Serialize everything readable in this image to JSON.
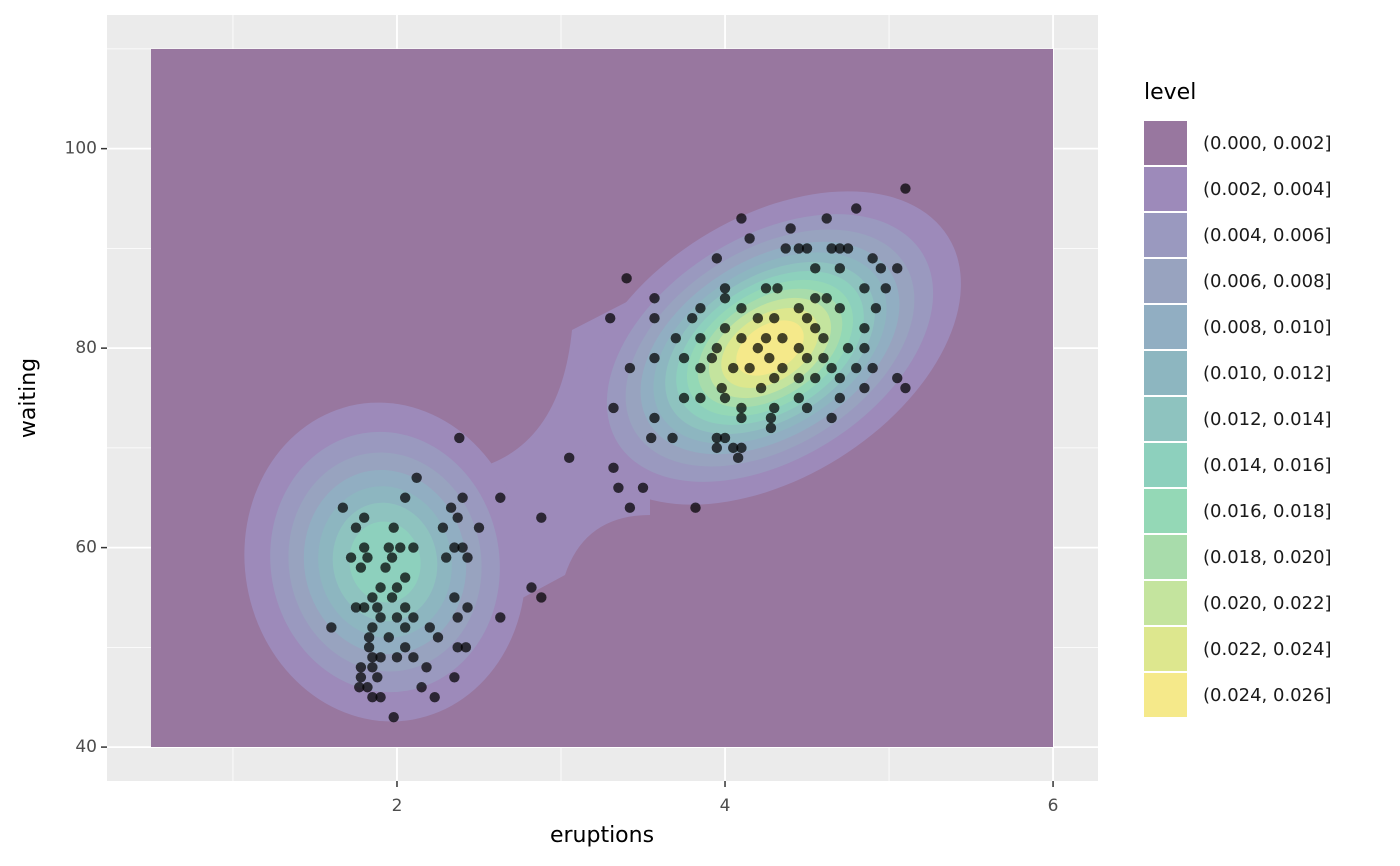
{
  "chart_data": {
    "type": "scatter",
    "x_label": "eruptions",
    "y_label": "waiting",
    "xlim": [
      0.232,
      6.274
    ],
    "ylim": [
      36.6,
      113.4
    ],
    "xticks": [
      2,
      4,
      6
    ],
    "yticks": [
      40,
      60,
      80,
      100
    ],
    "grid": true,
    "color": "#000000",
    "legend_title": "level",
    "legend_position": "right",
    "levels": [
      {
        "name": "(0.000, 0.002]",
        "color": "#98779f"
      },
      {
        "name": "(0.002, 0.004]",
        "color": "#9d8aba"
      },
      {
        "name": "(0.004, 0.006]",
        "color": "#9a99bf"
      },
      {
        "name": "(0.006, 0.008]",
        "color": "#98a3bf"
      },
      {
        "name": "(0.008, 0.010]",
        "color": "#91aec2"
      },
      {
        "name": "(0.010, 0.012]",
        "color": "#8db6c0"
      },
      {
        "name": "(0.012, 0.014]",
        "color": "#8ec3bf"
      },
      {
        "name": "(0.014, 0.016]",
        "color": "#8dd0bd"
      },
      {
        "name": "(0.016, 0.018]",
        "color": "#94d8b6"
      },
      {
        "name": "(0.018, 0.020]",
        "color": "#a8dcab"
      },
      {
        "name": "(0.020, 0.022]",
        "color": "#c4e49e"
      },
      {
        "name": "(0.022, 0.024]",
        "color": "#dde78e"
      },
      {
        "name": "(0.024, 0.026]",
        "color": "#f5e98a"
      }
    ],
    "x": [
      5.1,
      4.8,
      4.1,
      4.62,
      4.4,
      4.15,
      3.95,
      4.37,
      4.45,
      4.5,
      4.65,
      4.7,
      4.75,
      4.9,
      4.95,
      5.05,
      4.55,
      4.7,
      3.4,
      4.25,
      4.32,
      4.85,
      4.98,
      4.0,
      3.57,
      4.0,
      4.62,
      4.55,
      4.1,
      4.45,
      4.7,
      3.85,
      4.92,
      3.3,
      3.57,
      3.8,
      4.0,
      4.2,
      4.3,
      4.5,
      4.55,
      4.85,
      3.7,
      3.85,
      4.1,
      4.25,
      4.35,
      4.6,
      4.75,
      4.85,
      3.95,
      4.2,
      4.45,
      4.6,
      3.57,
      3.75,
      3.92,
      4.27,
      4.5,
      4.65,
      4.8,
      4.9,
      3.85,
      4.05,
      4.15,
      4.35,
      3.42,
      4.55,
      4.7,
      5.05,
      4.3,
      4.45,
      3.98,
      4.22,
      4.85,
      5.1,
      3.75,
      4.0,
      4.45,
      4.7,
      3.85,
      4.1,
      4.3,
      4.5,
      3.32,
      4.28,
      4.65,
      3.57,
      4.1,
      4.28,
      3.68,
      3.55,
      3.95,
      4.0,
      2.38,
      3.95,
      4.05,
      4.1,
      4.08,
      3.05,
      3.32,
      2.12,
      3.35,
      3.5,
      2.05,
      2.4,
      2.63,
      1.67,
      2.33,
      3.42,
      3.82,
      2.37,
      1.8,
      2.88,
      1.75,
      1.98,
      2.28,
      2.5,
      1.8,
      1.95,
      2.02,
      2.1,
      2.35,
      2.4,
      1.72,
      1.82,
      1.97,
      2.3,
      2.43,
      1.78,
      1.93,
      2.05,
      1.9,
      2.0,
      2.82,
      1.85,
      1.97,
      2.35,
      2.88,
      1.75,
      1.8,
      1.88,
      2.43,
      2.05,
      2.37,
      1.9,
      2.0,
      2.1,
      2.63,
      1.6,
      1.85,
      2.05,
      2.2,
      1.95,
      1.83,
      2.25,
      2.37,
      1.83,
      2.05,
      2.42,
      1.85,
      1.9,
      2.0,
      2.1,
      2.18,
      1.78,
      1.85,
      1.88,
      2.35,
      1.78,
      1.77,
      1.82,
      2.15,
      1.85,
      1.9,
      2.23,
      1.98
    ],
    "values": [
      96,
      94,
      93,
      93,
      92,
      91,
      89,
      90,
      90,
      90,
      90,
      90,
      90,
      89,
      88,
      88,
      88,
      88,
      87,
      86,
      86,
      86,
      86,
      86,
      85,
      85,
      85,
      85,
      84,
      84,
      84,
      84,
      84,
      83,
      83,
      83,
      82,
      83,
      83,
      83,
      82,
      82,
      81,
      81,
      81,
      81,
      81,
      81,
      80,
      80,
      80,
      80,
      80,
      79,
      79,
      79,
      79,
      79,
      79,
      78,
      78,
      78,
      78,
      78,
      78,
      78,
      78,
      77,
      77,
      77,
      77,
      77,
      76,
      76,
      76,
      76,
      75,
      75,
      75,
      75,
      75,
      74,
      74,
      74,
      74,
      73,
      73,
      73,
      73,
      72,
      71,
      71,
      71,
      71,
      71,
      70,
      70,
      70,
      69,
      69,
      68,
      67,
      66,
      66,
      65,
      65,
      65,
      64,
      64,
      64,
      64,
      63,
      63,
      63,
      62,
      62,
      62,
      62,
      60,
      60,
      60,
      60,
      60,
      60,
      59,
      59,
      59,
      59,
      59,
      58,
      58,
      57,
      56,
      56,
      56,
      55,
      55,
      55,
      55,
      54,
      54,
      54,
      54,
      54,
      53,
      53,
      53,
      53,
      53,
      52,
      52,
      52,
      52,
      51,
      51,
      51,
      50,
      50,
      50,
      50,
      49,
      49,
      49,
      49,
      48,
      48,
      48,
      47,
      47,
      47,
      46,
      46,
      46,
      45,
      45,
      45,
      43
    ]
  }
}
